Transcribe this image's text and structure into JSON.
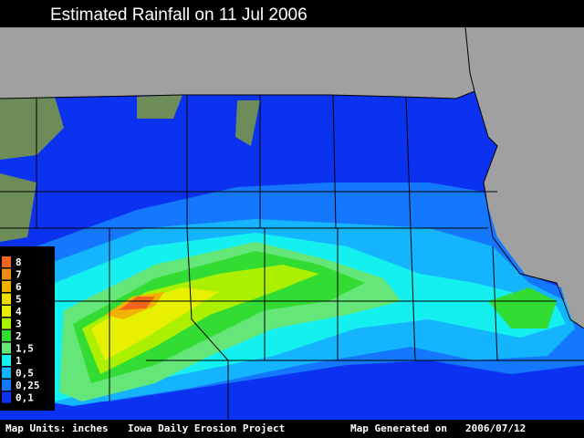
{
  "title": "Estimated Rainfall on 11 Jul 2006",
  "legend": {
    "items": [
      {
        "label": "8",
        "color": "#f0641e"
      },
      {
        "label": "7",
        "color": "#f08c14"
      },
      {
        "label": "6",
        "color": "#f0b400"
      },
      {
        "label": "5",
        "color": "#f0dc00"
      },
      {
        "label": "4",
        "color": "#e6f000"
      },
      {
        "label": "3",
        "color": "#aaf000"
      },
      {
        "label": "2",
        "color": "#32dc32"
      },
      {
        "label": "1,5",
        "color": "#64e678"
      },
      {
        "label": "1",
        "color": "#14f0f0"
      },
      {
        "label": "0,5",
        "color": "#14b4ff"
      },
      {
        "label": "0,25",
        "color": "#1478ff"
      },
      {
        "label": "0,1",
        "color": "#0a32f0"
      }
    ]
  },
  "footer": {
    "units": "Map Units: inches",
    "project": "Iowa Daily Erosion Project",
    "generated_label": "Map Generated on",
    "generated_date": "2006/07/12"
  }
}
